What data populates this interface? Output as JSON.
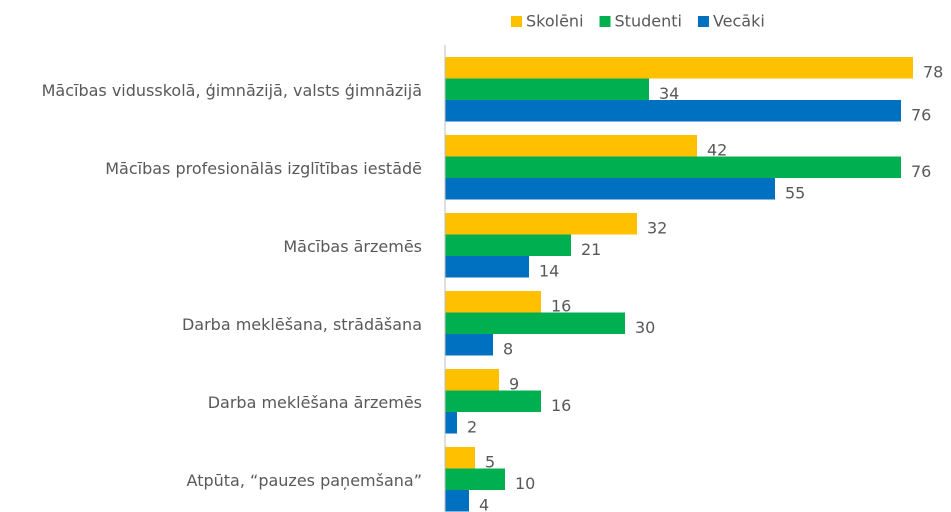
{
  "chart_data": {
    "type": "bar",
    "orientation": "horizontal",
    "categories": [
      "Mācības vidusskolā, ģimnāzijā, valsts ģimnāzijā",
      "Mācības profesionālās izglītības iestādē",
      "Mācības ārzemēs",
      "Darba meklēšana, strādāšana",
      "Darba meklēšana ārzemēs",
      "Atpūta, “pauzes paņemšana”"
    ],
    "series": [
      {
        "name": "Skolēni",
        "color": "#FFC000",
        "values": [
          78,
          42,
          32,
          16,
          9,
          5
        ]
      },
      {
        "name": "Studenti",
        "color": "#00B050",
        "values": [
          34,
          76,
          21,
          30,
          16,
          10
        ]
      },
      {
        "name": "Vecāki",
        "color": "#0070C0",
        "values": [
          76,
          55,
          14,
          8,
          2,
          4
        ]
      }
    ],
    "xlim": [
      0,
      80
    ],
    "legend": "top"
  }
}
